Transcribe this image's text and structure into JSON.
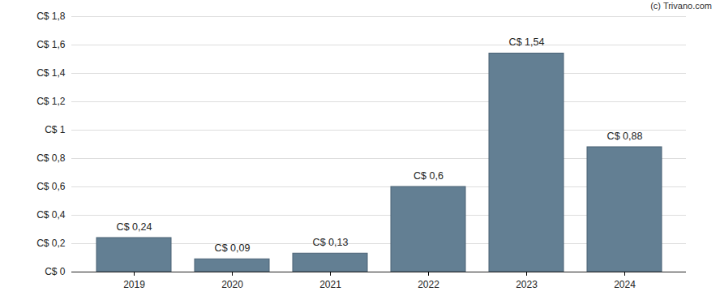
{
  "chart_data": {
    "type": "bar",
    "caption": "(c) Trivano.com",
    "categories": [
      "2019",
      "2020",
      "2021",
      "2022",
      "2023",
      "2024"
    ],
    "values": [
      0.24,
      0.09,
      0.13,
      0.6,
      1.54,
      0.88
    ],
    "value_labels": [
      "C$ 0,24",
      "C$ 0,09",
      "C$ 0,13",
      "C$ 0,6",
      "C$ 1,54",
      "C$ 0,88"
    ],
    "color": "#637f93",
    "ylim": [
      0,
      1.8
    ],
    "yticks": [
      {
        "value": 0,
        "label": "C$ 0"
      },
      {
        "value": 0.2,
        "label": "C$ 0,2"
      },
      {
        "value": 0.4,
        "label": "C$ 0,4"
      },
      {
        "value": 0.6,
        "label": "C$ 0,6"
      },
      {
        "value": 0.8,
        "label": "C$ 0,8"
      },
      {
        "value": 1,
        "label": "C$ 1"
      },
      {
        "value": 1.2,
        "label": "C$ 1,2"
      },
      {
        "value": 1.4,
        "label": "C$ 1,4"
      },
      {
        "value": 1.6,
        "label": "C$ 1,6"
      },
      {
        "value": 1.8,
        "label": "C$ 1,8"
      }
    ],
    "grid": true,
    "data_labels": true
  }
}
